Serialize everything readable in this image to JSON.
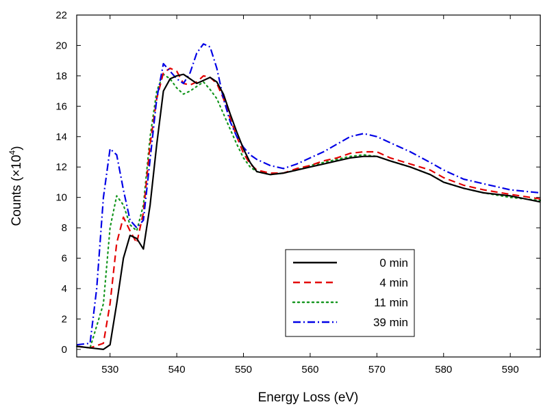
{
  "chart_data": {
    "type": "line",
    "xlabel": "Energy Loss (eV)",
    "ylabel_main": "Counts (×10",
    "ylabel_exp": "4",
    "ylabel_close": ")",
    "xlim": [
      525,
      594.5
    ],
    "ylim": [
      -0.5,
      22
    ],
    "xticks": [
      530,
      540,
      550,
      560,
      570,
      580,
      590
    ],
    "yticks": [
      0,
      2,
      4,
      6,
      8,
      10,
      12,
      14,
      16,
      18,
      20,
      22
    ],
    "grid": false,
    "legend_position": "bottom-right",
    "series": [
      {
        "name": "0 min",
        "color": "#000000",
        "dash": "solid",
        "x": [
          525,
          527,
          529,
          530,
          531,
          532,
          533,
          534,
          535,
          536,
          537,
          538,
          539,
          540,
          541,
          542,
          543,
          544,
          545,
          546,
          547,
          548,
          549,
          550,
          551,
          552,
          554,
          556,
          558,
          560,
          562,
          564,
          566,
          568,
          570,
          572,
          575,
          578,
          580,
          583,
          586,
          590,
          594.5
        ],
        "y": [
          0.2,
          0.1,
          0.0,
          0.3,
          3.0,
          6.0,
          7.5,
          7.3,
          6.6,
          9.5,
          13.5,
          17.0,
          17.8,
          18.0,
          18.1,
          17.8,
          17.5,
          17.7,
          17.9,
          17.6,
          16.8,
          15.5,
          14.3,
          13.2,
          12.3,
          11.7,
          11.5,
          11.6,
          11.8,
          12.0,
          12.2,
          12.4,
          12.6,
          12.7,
          12.7,
          12.4,
          12.0,
          11.5,
          11.0,
          10.6,
          10.3,
          10.1,
          9.7
        ]
      },
      {
        "name": "4 min",
        "color": "#e30000",
        "dash": "dashed",
        "x": [
          525,
          527,
          529,
          530,
          531,
          532,
          533,
          534,
          535,
          536,
          537,
          538,
          539,
          540,
          541,
          542,
          543,
          544,
          545,
          546,
          547,
          548,
          549,
          550,
          551,
          552,
          554,
          556,
          558,
          560,
          562,
          564,
          566,
          568,
          570,
          572,
          575,
          578,
          580,
          583,
          586,
          590,
          594.5
        ],
        "y": [
          0.2,
          0.1,
          0.4,
          3.0,
          7.0,
          8.7,
          7.8,
          7.0,
          9.0,
          13.5,
          16.5,
          18.2,
          18.5,
          18.3,
          17.5,
          17.4,
          17.6,
          18.0,
          17.9,
          17.5,
          16.5,
          15.2,
          14.0,
          12.9,
          12.2,
          11.8,
          11.6,
          11.6,
          11.9,
          12.1,
          12.4,
          12.6,
          12.9,
          13.0,
          13.0,
          12.6,
          12.2,
          11.8,
          11.3,
          10.8,
          10.5,
          10.2,
          9.9
        ]
      },
      {
        "name": "11 min",
        "color": "#14961e",
        "dash": "dotted",
        "x": [
          525,
          527,
          529,
          530,
          531,
          532,
          533,
          534,
          535,
          536,
          537,
          538,
          539,
          540,
          541,
          542,
          543,
          544,
          545,
          546,
          547,
          548,
          549,
          550,
          551,
          552,
          554,
          556,
          558,
          560,
          562,
          564,
          566,
          568,
          570,
          572,
          575,
          578,
          580,
          583,
          586,
          590,
          594.5
        ],
        "y": [
          0.2,
          0.1,
          3.0,
          8.0,
          10.1,
          9.5,
          8.2,
          7.8,
          9.5,
          14.0,
          17.0,
          18.1,
          17.8,
          17.2,
          16.8,
          17.0,
          17.3,
          17.6,
          17.1,
          16.5,
          15.5,
          14.5,
          13.5,
          12.6,
          12.0,
          11.7,
          11.5,
          11.6,
          11.8,
          12.1,
          12.3,
          12.5,
          12.7,
          12.8,
          12.7,
          12.4,
          12.0,
          11.5,
          11.0,
          10.6,
          10.3,
          10.0,
          9.8
        ]
      },
      {
        "name": "39 min",
        "color": "#0000e6",
        "dash": "dashdot",
        "x": [
          525,
          527,
          528,
          529,
          530,
          531,
          532,
          533,
          534,
          535,
          536,
          537,
          538,
          539,
          540,
          541,
          542,
          543,
          544,
          545,
          546,
          547,
          548,
          549,
          550,
          551,
          552,
          554,
          556,
          558,
          560,
          562,
          564,
          566,
          568,
          570,
          572,
          575,
          578,
          580,
          583,
          586,
          590,
          594.5
        ],
        "y": [
          0.3,
          0.4,
          4.0,
          10.0,
          13.2,
          12.8,
          10.5,
          8.5,
          8.0,
          8.5,
          12.5,
          16.5,
          18.8,
          18.3,
          17.8,
          17.5,
          18.2,
          19.5,
          20.1,
          19.9,
          18.5,
          16.5,
          15.0,
          14.0,
          13.3,
          12.8,
          12.5,
          12.1,
          11.9,
          12.2,
          12.6,
          13.0,
          13.5,
          14.0,
          14.2,
          14.0,
          13.6,
          13.0,
          12.3,
          11.8,
          11.2,
          10.9,
          10.5,
          10.3
        ]
      }
    ]
  }
}
